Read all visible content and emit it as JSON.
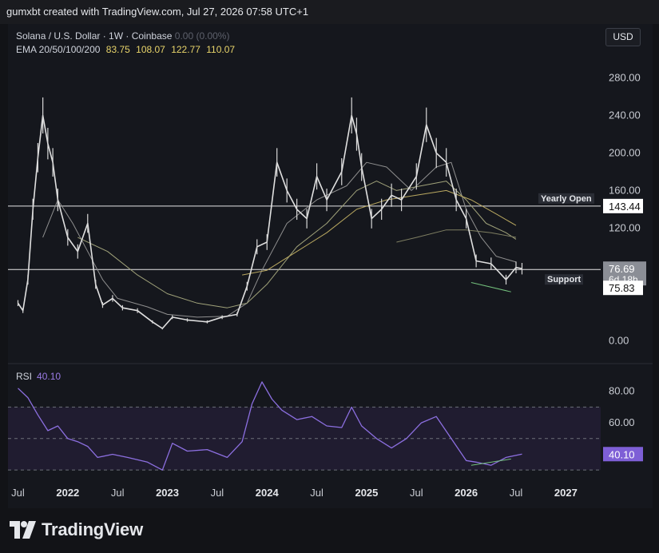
{
  "header": {
    "attribution": "gumxbt created with TradingView.com, Jul 27, 2026 07:58 UTC+1"
  },
  "legend": {
    "symbol": "Solana / U.S. Dollar · 1W · Coinbase",
    "change": "0.00 (0.00%)",
    "ema_label": "EMA 20/50/100/200",
    "ema_values": [
      "83.75",
      "108.07",
      "122.77",
      "110.07"
    ]
  },
  "currency_button": "USD",
  "rsi": {
    "label": "RSI",
    "value": "40.10"
  },
  "footer": {
    "brand": "TradingView"
  },
  "chart_data": [
    {
      "type": "line",
      "title": "Solana / U.S. Dollar · 1W · Coinbase",
      "x_ticks": [
        "Jul",
        "2022",
        "Jul",
        "2023",
        "Jul",
        "2024",
        "Jul",
        "2025",
        "Jul",
        "2026",
        "Jul",
        "2027"
      ],
      "y_ticks": [
        "280.00",
        "240.00",
        "200.00",
        "160.00",
        "120.00",
        "0.00"
      ],
      "ylim": [
        -10,
        300
      ],
      "grid": false,
      "price": {
        "x": [
          2021.5,
          2021.55,
          2021.6,
          2021.65,
          2021.7,
          2021.75,
          2021.8,
          2021.85,
          2021.9,
          2022.0,
          2022.1,
          2022.2,
          2022.28,
          2022.35,
          2022.45,
          2022.55,
          2022.7,
          2022.85,
          2022.95,
          2023.05,
          2023.2,
          2023.4,
          2023.55,
          2023.7,
          2023.8,
          2023.9,
          2024.0,
          2024.1,
          2024.2,
          2024.3,
          2024.4,
          2024.5,
          2024.6,
          2024.75,
          2024.85,
          2024.9,
          2024.95,
          2025.05,
          2025.15,
          2025.25,
          2025.35,
          2025.5,
          2025.6,
          2025.7,
          2025.8,
          2025.9,
          2026.0,
          2026.1,
          2026.25,
          2026.4,
          2026.5,
          2026.56
        ],
        "y": [
          40,
          32,
          65,
          140,
          195,
          240,
          210,
          190,
          150,
          110,
          95,
          125,
          60,
          38,
          45,
          35,
          32,
          20,
          13,
          25,
          22,
          20,
          25,
          28,
          58,
          100,
          105,
          190,
          160,
          140,
          130,
          175,
          150,
          180,
          240,
          220,
          185,
          130,
          140,
          155,
          150,
          175,
          230,
          200,
          190,
          150,
          130,
          85,
          82,
          65,
          78,
          76.69
        ]
      },
      "ema": [
        {
          "name": "EMA 20",
          "x": [
            2021.75,
            2021.9,
            2022.05,
            2022.2,
            2022.35,
            2022.5,
            2022.8,
            2023.0,
            2023.3,
            2023.6,
            2023.8,
            2023.95,
            2024.2,
            2024.5,
            2024.8,
            2025.0,
            2025.2,
            2025.45,
            2025.7,
            2025.85,
            2026.0,
            2026.15,
            2026.3,
            2026.5
          ],
          "y": [
            110,
            150,
            125,
            95,
            65,
            45,
            36,
            28,
            25,
            26,
            40,
            75,
            125,
            150,
            165,
            190,
            185,
            160,
            185,
            190,
            140,
            110,
            90,
            83.75
          ]
        },
        {
          "name": "EMA 50",
          "x": [
            2022.1,
            2022.4,
            2022.7,
            2023.0,
            2023.3,
            2023.6,
            2023.8,
            2024.0,
            2024.3,
            2024.6,
            2024.9,
            2025.1,
            2025.3,
            2025.55,
            2025.8,
            2026.0,
            2026.2,
            2026.4,
            2026.5
          ],
          "y": [
            110,
            95,
            70,
            50,
            40,
            35,
            40,
            60,
            100,
            125,
            160,
            170,
            160,
            165,
            170,
            150,
            125,
            115,
            108.07
          ]
        },
        {
          "name": "EMA 100",
          "x": [
            2023.75,
            2024.0,
            2024.3,
            2024.6,
            2024.9,
            2025.2,
            2025.5,
            2025.8,
            2026.05,
            2026.3,
            2026.5
          ],
          "y": [
            70,
            75,
            95,
            115,
            140,
            150,
            155,
            160,
            150,
            135,
            122.77
          ]
        },
        {
          "name": "EMA 200",
          "x": [
            2025.3,
            2025.5,
            2025.8,
            2026.0,
            2026.25,
            2026.5
          ],
          "y": [
            105,
            110,
            118,
            118,
            115,
            110.07
          ]
        }
      ],
      "levels": [
        {
          "label": "Yearly Open",
          "value": 143.44
        },
        {
          "label": "Support",
          "value": 75.83
        }
      ],
      "price_labels": {
        "last": "76.69",
        "countdown": "6d 18h",
        "support": "75.83",
        "yearly_open": "143.44"
      },
      "annotations": [
        "Yearly Open",
        "Support"
      ]
    },
    {
      "type": "line",
      "title": "RSI",
      "y_ticks": [
        "80.00",
        "60.00"
      ],
      "ylim": [
        25,
        90
      ],
      "bands": [
        70,
        50,
        30
      ],
      "x": [
        2021.5,
        2021.6,
        2021.7,
        2021.8,
        2021.9,
        2022.0,
        2022.1,
        2022.2,
        2022.3,
        2022.45,
        2022.6,
        2022.8,
        2022.95,
        2023.05,
        2023.2,
        2023.4,
        2023.6,
        2023.75,
        2023.85,
        2023.95,
        2024.05,
        2024.15,
        2024.3,
        2024.45,
        2024.6,
        2024.75,
        2024.85,
        2024.95,
        2025.1,
        2025.25,
        2025.4,
        2025.55,
        2025.7,
        2025.85,
        2026.0,
        2026.1,
        2026.25,
        2026.4,
        2026.56
      ],
      "y": [
        82,
        76,
        65,
        55,
        58,
        50,
        48,
        45,
        38,
        40,
        38,
        35,
        30,
        47,
        42,
        43,
        38,
        48,
        72,
        86,
        75,
        68,
        62,
        64,
        58,
        57,
        70,
        58,
        50,
        44,
        50,
        60,
        64,
        50,
        36,
        35,
        33,
        38,
        40.1
      ]
    }
  ]
}
